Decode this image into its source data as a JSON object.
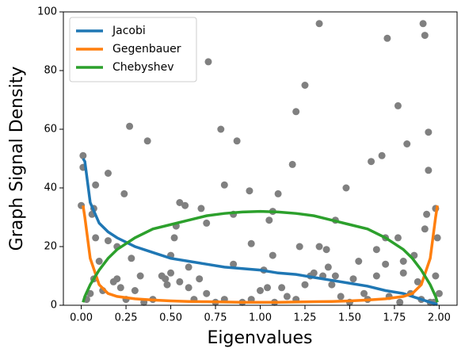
{
  "chart_data": {
    "type": "line",
    "xlabel": "Eigenvalues",
    "ylabel": "Graph Signal Density",
    "xlim": [
      -0.1,
      2.1
    ],
    "ylim": [
      0,
      100
    ],
    "xticks": [
      {
        "value": 0,
        "label": "0.00"
      },
      {
        "value": 0.25,
        "label": "0.25"
      },
      {
        "value": 0.5,
        "label": "0.50"
      },
      {
        "value": 0.75,
        "label": "0.75"
      },
      {
        "value": 1,
        "label": "1.00"
      },
      {
        "value": 1.25,
        "label": "1.25"
      },
      {
        "value": 1.5,
        "label": "1.50"
      },
      {
        "value": 1.75,
        "label": "1.75"
      },
      {
        "value": 2,
        "label": "2.00"
      }
    ],
    "yticks": [
      0,
      20,
      40,
      60,
      80,
      100
    ],
    "legend": "upper left",
    "x": [
      0.01,
      0.02,
      0.05,
      0.1,
      0.15,
      0.2,
      0.3,
      0.4,
      0.5,
      0.6,
      0.7,
      0.8,
      0.9,
      1.0,
      1.1,
      1.2,
      1.3,
      1.4,
      1.5,
      1.6,
      1.7,
      1.8,
      1.85,
      1.9,
      1.95,
      1.98,
      1.99
    ],
    "series": [
      {
        "name": "Jacobi",
        "color": "#1f77b4",
        "values": [
          50,
          49,
          35,
          28,
          25,
          23,
          20,
          18,
          16,
          15,
          14,
          13,
          12.5,
          12,
          11,
          10.5,
          9.5,
          8.5,
          7.5,
          6.5,
          5,
          4,
          3,
          2,
          1,
          0.5,
          0.2
        ]
      },
      {
        "name": "Gegenbauer",
        "color": "#ff7f0e",
        "values": [
          34,
          30,
          16,
          7,
          4,
          3,
          2.2,
          1.8,
          1.5,
          1.3,
          1.2,
          1.1,
          1.0,
          1.0,
          1.0,
          1.1,
          1.2,
          1.3,
          1.5,
          1.8,
          2.2,
          3,
          4,
          7,
          16,
          30,
          34
        ]
      },
      {
        "name": "Chebyshev",
        "color": "#2ca02c",
        "values": [
          1,
          3,
          7,
          12,
          16,
          19,
          23,
          26,
          27.5,
          29,
          30.5,
          31.3,
          31.8,
          32,
          31.8,
          31.3,
          30.5,
          29,
          27.5,
          26,
          23,
          19,
          16,
          12,
          7,
          3,
          1
        ]
      }
    ],
    "points": {
      "color": "#808080",
      "x": [
        0.0,
        0.01,
        0.01,
        0.08,
        0.07,
        0.06,
        0.08,
        0.1,
        0.15,
        0.15,
        0.2,
        0.24,
        0.27,
        0.28,
        0.37,
        0.47,
        0.5,
        0.52,
        0.53,
        0.55,
        0.58,
        0.6,
        0.67,
        0.7,
        0.71,
        0.78,
        0.8,
        0.85,
        0.87,
        0.94,
        0.95,
        1.0,
        1.05,
        1.07,
        1.07,
        1.1,
        1.18,
        1.2,
        1.22,
        1.25,
        1.28,
        1.33,
        1.33,
        1.37,
        1.38,
        1.42,
        1.48,
        1.55,
        1.62,
        1.65,
        1.68,
        1.7,
        1.71,
        1.77,
        1.77,
        1.8,
        1.82,
        1.86,
        1.91,
        1.92,
        1.94,
        1.94,
        1.92,
        1.93,
        1.98,
        1.99,
        1.98,
        2.0,
        0.03,
        0.05,
        0.07,
        0.12,
        0.18,
        0.2,
        0.22,
        0.25,
        0.3,
        0.33,
        0.35,
        0.4,
        0.45,
        0.48,
        0.5,
        0.55,
        0.6,
        0.63,
        0.66,
        0.7,
        0.75,
        0.8,
        0.85,
        0.9,
        0.95,
        1.02,
        1.04,
        1.08,
        1.12,
        1.15,
        1.2,
        1.25,
        1.3,
        1.35,
        1.4,
        1.42,
        1.45,
        1.5,
        1.52,
        1.58,
        1.6,
        1.65,
        1.7,
        1.72,
        1.78,
        1.8,
        1.84,
        1.88,
        1.9,
        1.95,
        1.97
      ],
      "y": [
        34,
        51,
        47,
        41,
        33,
        31,
        23,
        15,
        45,
        22,
        20,
        38,
        61,
        16,
        56,
        9,
        17,
        23,
        27,
        35,
        34,
        13,
        33,
        28,
        83,
        60,
        41,
        31,
        56,
        39,
        21,
        5,
        29,
        32,
        17,
        38,
        48,
        66,
        20,
        75,
        10,
        96,
        20,
        19,
        13,
        29,
        40,
        15,
        49,
        19,
        51,
        23,
        91,
        68,
        23,
        15,
        55,
        17,
        96,
        92,
        59,
        46,
        26,
        31,
        33,
        23,
        10,
        4,
        2,
        4,
        9,
        5,
        8,
        9,
        6,
        2,
        5,
        10,
        1,
        2,
        10,
        7,
        11,
        8,
        6,
        2,
        9,
        4,
        1,
        2,
        14,
        1,
        2,
        12,
        6,
        1,
        6,
        3,
        2,
        7,
        11,
        10,
        7,
        10,
        3,
        1,
        9,
        4,
        2,
        10,
        14,
        3,
        1,
        11,
        4,
        8,
        2,
        1,
        1
      ]
    }
  }
}
